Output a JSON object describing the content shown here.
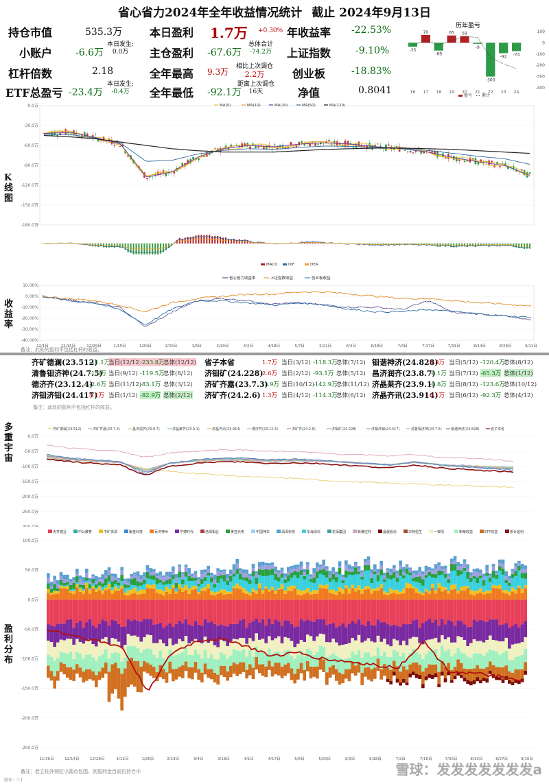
{
  "header": {
    "title": "省心省力2024年全年收益情况统计",
    "as_of": "截止 2024年9月13日"
  },
  "stats": {
    "position_value_label": "持仓市值",
    "position_value": "535.3万",
    "today_pnl_label": "本日盈利",
    "today_pnl": "1.7万",
    "today_pnl_pct": "+0.30%",
    "annual_return_label": "年收益率",
    "annual_return": "-22.53%",
    "small_account_label": "小账户",
    "small_account": "-6.6万",
    "small_today_label": "本日发生:",
    "small_today": "0.0万",
    "main_pnl_label": "主仓盈利",
    "main_pnl": "-67.6万",
    "total_label": "总体合计",
    "total": "-74.2万",
    "sh_index_label": "上证指数",
    "sh_index": "-9.10%",
    "leverage_label": "杠杆倍数",
    "leverage": "2.18",
    "year_high_label": "全年最高",
    "year_high": "9.3万",
    "pullback_label": "相比上次调仓",
    "pullback": "2.2万",
    "chinext_label": "创业板",
    "chinext": "-18.83%",
    "etf_label": "ETF总盈亏",
    "etf": "-23.4万",
    "etf_today_label": "本日发生:",
    "etf_today": "-0.4万",
    "year_low_label": "全年最低",
    "year_low": "-92.1万",
    "since_label": "距离上次调仓",
    "since": "16天",
    "nav_label": "净值",
    "nav": "0.8041"
  },
  "history": {
    "title": "历年盈亏",
    "legend_bar": "盈亏",
    "legend_line": "累计",
    "years": [
      "16",
      "17",
      "18",
      "19",
      "20",
      "21",
      "22",
      "23",
      "24"
    ],
    "values": [
      -35,
      70,
      -69,
      65,
      59,
      -9,
      -300,
      -92,
      -74
    ],
    "yticks": [
      "100",
      "0",
      "-100",
      "-200",
      "-300",
      "-400"
    ]
  },
  "panels": {
    "kline_label": "K线图",
    "return_label": "收益率",
    "multiverse_label": "多重宇宙",
    "profit_label": "盈利分布",
    "return_note": "备注：此处的盈利不包括杠杆的收益。",
    "table_note": "备注：此处的盈利不包括杠杆的收益。",
    "bottom_note": "备注：若立柱外侧区小圆点包围，则盈利金目前仍持仓中",
    "version": "版本：7.1",
    "watermark": "雪球：发发发发发发发a"
  },
  "pos_table": [
    {
      "name": "齐矿德澜(23.512)",
      "today": "-11.1万",
      "td": "当日(12/12)",
      "total": "-233.8万",
      "tt": "总体(12/12)",
      "hl": "red"
    },
    {
      "name": "省子本省",
      "today": "1.7万",
      "td": "当日(3/12)",
      "total": "-118.3万",
      "tt": "总体(7/12)",
      "hl": ""
    },
    {
      "name": "钼谐神济(24.828)",
      "today": "0.8万",
      "td": "当日(5/12)",
      "total": "-120.4万",
      "tt": "总体(8/12)",
      "hl": ""
    },
    {
      "name": "清鲁钼济神(24.7.5)",
      "today": "-1.0万",
      "td": "当日(9/12)",
      "total": "-119.5万",
      "tt": "总体(8/12)",
      "hl": ""
    },
    {
      "name": "济钼矿(24.228)",
      "today": "2.6万",
      "td": "当日(2/12)",
      "total": "-93.1万",
      "tt": "总体(5/12)",
      "hl": ""
    },
    {
      "name": "昌济润齐(23.8.7)",
      "today": "-0.1万",
      "td": "当日(7/12)",
      "total": "-65.3万",
      "tt": "总体(1/12)",
      "hl": "green"
    },
    {
      "name": "德济齐(23.12.4)",
      "today": "-2.6万",
      "td": "当日(11/12)",
      "total": "-83.1万",
      "tt": "总体(3/12)",
      "hl": ""
    },
    {
      "name": "济矿齐嘉(23.7.3)",
      "today": "-1.9万",
      "td": "当日(10/12)",
      "total": "-142.9万",
      "tt": "总体(11/12)",
      "hl": ""
    },
    {
      "name": "济晶莱齐(23.9.1)",
      "today": "-0.8万",
      "td": "当日(8/12)",
      "total": "-123.6万",
      "tt": "总体(10/12)",
      "hl": ""
    },
    {
      "name": "济钼济钼(24.417)",
      "today": "4.1万",
      "td": "当日(1/12)",
      "total": "-82.9万",
      "tt": "总体(2/12)",
      "hl": "green"
    },
    {
      "name": "济矿齐(24.2.6)",
      "today": "1.3万",
      "td": "当日(4/12)",
      "total": "-114.3万",
      "tt": "总体(6/12)",
      "hl": ""
    },
    {
      "name": "济晶齐讯(23.914)",
      "today": "0.1万",
      "td": "当日(6/12)",
      "total": "-92.3万",
      "tt": "总体(4/12)",
      "hl": ""
    }
  ],
  "kline_legend": [
    "MA(5)",
    "MA(10)",
    "MA(20)",
    "MA(50)",
    "MA(120)"
  ],
  "macd_legend": [
    "MACD",
    "DIF",
    "DEA"
  ],
  "return_legend": [
    "省心省力收益率",
    "上证指数收益",
    "创业板收益"
  ],
  "dates_top": [
    "12/1日",
    "12/15日",
    "12/29日",
    "1/15日",
    "1/29日",
    "2/20日",
    "3/5日",
    "3/19日",
    "4/2日",
    "4/18日",
    "5/7日",
    "5/21日",
    "6/4日",
    "6/18日",
    "7/3日",
    "7/17日",
    "7/31日",
    "8/14日",
    "8/28日",
    "9/11日"
  ],
  "dates_bottom": [
    "11/30日",
    "12/14日",
    "12/28日",
    "1/12日",
    "1/26日",
    "2/19日",
    "3/4日",
    "3/18日",
    "4/1日",
    "4/17日",
    "5/6日",
    "5/20日",
    "6/3日",
    "6/18日",
    "7/2日",
    "7/16日",
    "7/30日",
    "8/13日",
    "8/27日",
    "9/10日"
  ],
  "multiverse_legend": [
    "齐矿德澜(23.512)",
    "济矿齐嘉(23.7.3)",
    "昌济润齐(23.8.7)",
    "济晶莱齐(23.9.1)",
    "济晶齐讯(23.914)",
    "德济齐(23.12.4)",
    "济矿齐(24.2.6)",
    "济钼矿(24.228)",
    "济钼济钼(24.417)",
    "清鲁钼济神(24.7.5)",
    "钼谐神济(24.828)",
    "省子本省"
  ],
  "profit_legend": [
    "天齐锂业",
    "中公教育",
    "中矿资源",
    "紫金科技",
    "百济神州",
    "宁德时代",
    "洛阳钼业",
    "美亚光电",
    "中国神华",
    "润泽科技",
    "华海清科",
    "龙佰集团",
    "新莱应材",
    "晶晨股份",
    "华特恒生",
    "一夜情",
    "新散收益",
    "ETF收益",
    "累计盈利"
  ],
  "chart_data": [
    {
      "type": "bar",
      "title": "历年盈亏",
      "categories": [
        "16",
        "17",
        "18",
        "19",
        "20",
        "21",
        "22",
        "23",
        "24"
      ],
      "values": [
        -35,
        70,
        -69,
        65,
        59,
        -9,
        -300,
        -92,
        -74
      ],
      "ylim": [
        -400,
        100
      ],
      "unit": "万"
    },
    {
      "type": "line",
      "title": "K线图",
      "y_ticks": [
        "0.0万",
        "-30.0万",
        "-60.0万",
        "-90.0万",
        "-120.0万",
        "-150.0万",
        "-180.0万"
      ],
      "ylim": [
        -180,
        0
      ],
      "series": [
        {
          "name": "MA(120)",
          "values": [
            -45,
            -47,
            -50,
            -55,
            -60,
            -65,
            -68,
            -70,
            -70,
            -70,
            -68,
            -66,
            -65,
            -64,
            -64,
            -65,
            -66,
            -68,
            -70,
            -72
          ]
        },
        {
          "name": "MA(20)",
          "values": [
            -42,
            -40,
            -48,
            -58,
            -108,
            -100,
            -78,
            -65,
            -60,
            -62,
            -58,
            -56,
            -58,
            -62,
            -65,
            -70,
            -78,
            -85,
            -90,
            -105
          ]
        }
      ]
    },
    {
      "type": "line",
      "title": "收益率",
      "y_ticks": [
        "10.00%",
        "0.00%",
        "-10.00%",
        "-20.00%",
        "-30.00%",
        "-40.00%"
      ],
      "ylim": [
        -40,
        10
      ],
      "series": [
        {
          "name": "省心省力收益率",
          "values": [
            0,
            -3,
            -6,
            -10,
            -28,
            -15,
            -4,
            -2,
            -4,
            -7,
            -6,
            -8,
            -10,
            -10,
            -12,
            -4,
            -15,
            -16,
            -18,
            -22
          ]
        },
        {
          "name": "上证指数收益",
          "values": [
            0,
            -2,
            -4,
            -8,
            -14,
            -6,
            -2,
            0,
            2,
            2,
            4,
            4,
            2,
            0,
            -2,
            -2,
            -4,
            -6,
            -7,
            -9
          ]
        },
        {
          "name": "创业板收益",
          "values": [
            0,
            -4,
            -6,
            -12,
            -26,
            -12,
            -4,
            -4,
            -6,
            -8,
            -6,
            -8,
            -12,
            -14,
            -14,
            -12,
            -14,
            -16,
            -18,
            -19
          ]
        }
      ]
    },
    {
      "type": "line",
      "title": "多重宇宙",
      "y_ticks": [
        "0.0万",
        "-50.0万",
        "-100.0万",
        "-150.0万",
        "-200.0万",
        "-250.0万",
        "-300.0万"
      ],
      "ylim": [
        -300,
        0
      ],
      "series": [
        {
          "name": "齐矿德澜(23.512)",
          "values": [
            -40,
            -60,
            -90,
            -100,
            -120,
            -140,
            -150,
            -160,
            -170,
            -175,
            -180,
            -190,
            -200,
            -205,
            -210,
            -215,
            -220,
            -225,
            -230,
            -234
          ]
        },
        {
          "name": "省子本省",
          "values": [
            -75,
            -85,
            -90,
            -95,
            -130,
            -100,
            -90,
            -85,
            -85,
            -90,
            -88,
            -90,
            -95,
            -100,
            -105,
            -95,
            -105,
            -110,
            -115,
            -118
          ]
        },
        {
          "name": "济钼济钼(24.417)",
          "values": [
            -30,
            -40,
            -45,
            -50,
            -70,
            -55,
            -50,
            -45,
            -45,
            -50,
            -50,
            -55,
            -60,
            -62,
            -65,
            -60,
            -70,
            -72,
            -76,
            -83
          ]
        }
      ]
    },
    {
      "type": "area",
      "title": "盈利分布",
      "y_ticks": [
        "100.0万",
        "50.0万",
        "0.0万",
        "-50.0万",
        "-100.0万",
        "-150.0万",
        "-200.0万",
        "-250.0万"
      ],
      "ylim": [
        -250,
        100
      ],
      "series": [
        {
          "name": "累计盈利",
          "values": [
            -50,
            -60,
            -70,
            -80,
            -155,
            -90,
            -70,
            -65,
            -80,
            -95,
            -90,
            -100,
            -105,
            -110,
            -115,
            -70,
            -120,
            -125,
            -130,
            -140
          ]
        }
      ]
    }
  ]
}
